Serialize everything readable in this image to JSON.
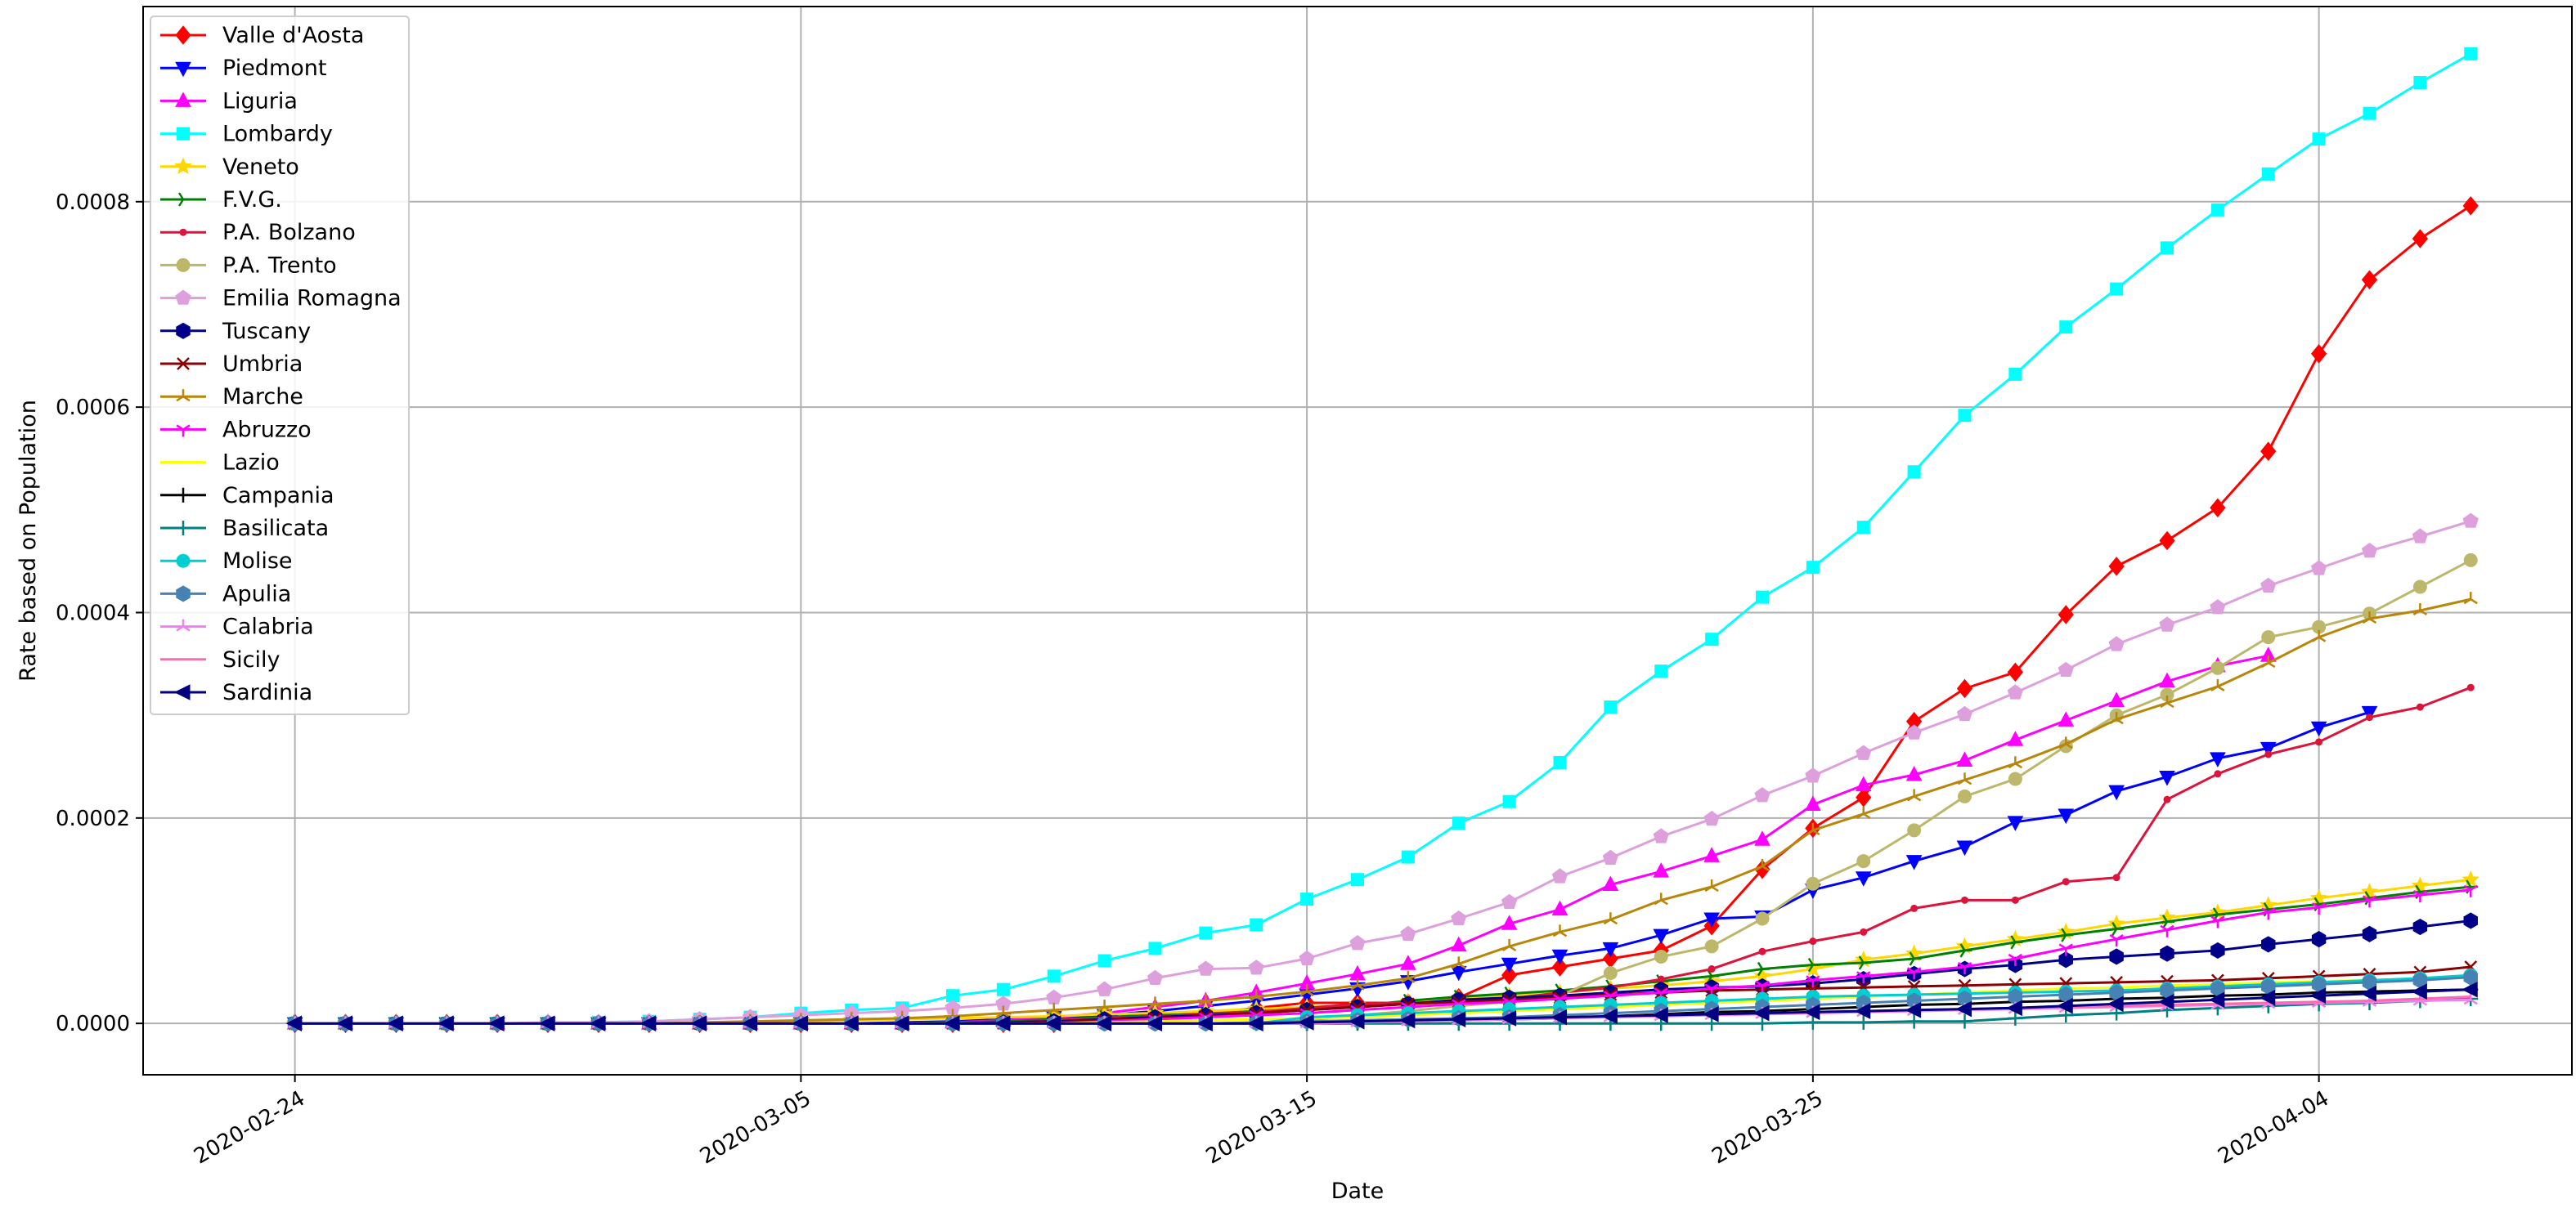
{
  "chart_data": {
    "type": "line",
    "title": "",
    "xlabel": "Date",
    "ylabel": "Rate based on Population",
    "x_tick_labels": [
      "2020-02-24",
      "2020-03-05",
      "2020-03-15",
      "2020-03-25",
      "2020-04-04"
    ],
    "y_tick_labels": [
      "0.0000",
      "0.0002",
      "0.0004",
      "0.0006",
      "0.0008"
    ],
    "y_ticks": [
      0,
      0.0002,
      0.0004,
      0.0006,
      0.0008
    ],
    "xlim": [
      "2020-02-21",
      "2020-04-09"
    ],
    "ylim": [
      -5e-05,
      0.00099
    ],
    "grid": true,
    "legend_position": "upper-left",
    "x": [
      "2020-02-24",
      "2020-02-25",
      "2020-02-26",
      "2020-02-27",
      "2020-02-28",
      "2020-02-29",
      "2020-03-01",
      "2020-03-02",
      "2020-03-03",
      "2020-03-04",
      "2020-03-05",
      "2020-03-06",
      "2020-03-07",
      "2020-03-08",
      "2020-03-09",
      "2020-03-10",
      "2020-03-11",
      "2020-03-12",
      "2020-03-13",
      "2020-03-14",
      "2020-03-15",
      "2020-03-16",
      "2020-03-17",
      "2020-03-18",
      "2020-03-19",
      "2020-03-20",
      "2020-03-21",
      "2020-03-22",
      "2020-03-23",
      "2020-03-24",
      "2020-03-25",
      "2020-03-26",
      "2020-03-27",
      "2020-03-28",
      "2020-03-29",
      "2020-03-30",
      "2020-03-31",
      "2020-04-01",
      "2020-04-02",
      "2020-04-03",
      "2020-04-04",
      "2020-04-05",
      "2020-04-06",
      "2020-04-07"
    ],
    "series": [
      {
        "name": "Valle d'Aosta",
        "color": "#ff0000",
        "marker": "diamond",
        "values": [
          0,
          0,
          0,
          0,
          0,
          0,
          0,
          0,
          0,
          0,
          0,
          0,
          0,
          0,
          0,
          0,
          5e-06,
          1e-05,
          1e-05,
          1.5e-05,
          2e-05,
          2e-05,
          2e-05,
          2.5e-05,
          4.7e-05,
          5.5e-05,
          6.3e-05,
          7.1e-05,
          9.5e-05,
          0.00015,
          0.00019,
          0.00022,
          0.000294,
          0.000326,
          0.000342,
          0.000398,
          0.000445,
          0.00047,
          0.000502,
          0.000557,
          0.000652,
          0.000724,
          0.000764,
          0.000796
        ]
      },
      {
        "name": "Piedmont",
        "color": "#0000ff",
        "marker": "triangle-down",
        "values": [
          0,
          0,
          0,
          0,
          0,
          0,
          0,
          0,
          0,
          0,
          0,
          0,
          1e-06,
          2e-06,
          4e-06,
          6e-06,
          8e-06,
          1.2e-05,
          1.7e-05,
          2.2e-05,
          2.8e-05,
          3.4e-05,
          4.1e-05,
          5e-05,
          5.8e-05,
          6.6e-05,
          7.3e-05,
          8.6e-05,
          0.000102,
          0.000104,
          0.00013,
          0.000142,
          0.000158,
          0.000172,
          0.000196,
          0.000203,
          0.000226,
          0.00024,
          0.000258,
          0.000268,
          0.000288,
          0.000303,
          null,
          null
        ]
      },
      {
        "name": "Liguria",
        "color": "#ff00ff",
        "marker": "triangle-up",
        "values": [
          0,
          0,
          0,
          0,
          0,
          0,
          0,
          0,
          0,
          0,
          0,
          0,
          0,
          1e-06,
          3e-06,
          6e-06,
          1e-05,
          1.6e-05,
          2.2e-05,
          3e-05,
          3.9e-05,
          4.8e-05,
          5.8e-05,
          7.6e-05,
          9.7e-05,
          0.000111,
          0.000135,
          0.000148,
          0.000163,
          0.000179,
          0.000213,
          0.000232,
          0.000242,
          0.000256,
          0.000276,
          0.000295,
          0.000314,
          0.000333,
          0.000348,
          0.000358,
          null,
          null,
          null,
          null
        ]
      },
      {
        "name": "Lombardy",
        "color": "#00ffff",
        "marker": "square",
        "values": [
          0,
          0,
          0,
          0,
          0,
          0,
          1e-06,
          2e-06,
          4e-06,
          6e-06,
          1e-05,
          1.3e-05,
          1.5e-05,
          2.7e-05,
          3.3e-05,
          4.6e-05,
          6.1e-05,
          7.3e-05,
          8.8e-05,
          9.6e-05,
          0.000121,
          0.00014,
          0.000162,
          0.000195,
          0.000216,
          0.000254,
          0.000308,
          0.000343,
          0.000374,
          0.000415,
          0.000444,
          0.000483,
          0.000537,
          0.000592,
          0.000632,
          0.000678,
          0.000715,
          0.000755,
          0.000792,
          0.000827,
          0.000861,
          0.000886,
          0.000916,
          0.000944
        ]
      },
      {
        "name": "Veneto",
        "color": "#ffd700",
        "marker": "star",
        "values": [
          0,
          0,
          0,
          0,
          0,
          0,
          0,
          0,
          0,
          1e-06,
          2e-06,
          3e-06,
          4e-06,
          5e-06,
          6e-06,
          7e-06,
          9e-06,
          1e-05,
          1.2e-05,
          1.4e-05,
          1.6e-05,
          1.8e-05,
          2.1e-05,
          2.4e-05,
          2.7e-05,
          3e-05,
          3.4e-05,
          3.7e-05,
          4.1e-05,
          4.6e-05,
          5.3e-05,
          6.2e-05,
          6.8e-05,
          7.5e-05,
          8.2e-05,
          8.9e-05,
          9.7e-05,
          0.000103,
          0.000108,
          0.000115,
          0.000122,
          0.000128,
          0.000134,
          0.00014
        ]
      },
      {
        "name": "F.V.G.",
        "color": "#008000",
        "marker": "tri-right",
        "values": [
          0,
          0,
          0,
          0,
          0,
          0,
          0,
          0,
          0,
          0,
          0,
          0,
          0,
          1e-06,
          2e-06,
          4e-06,
          6e-06,
          8e-06,
          9e-06,
          1.2e-05,
          1.3e-05,
          1.7e-05,
          2.2e-05,
          2.6e-05,
          2.9e-05,
          3.2e-05,
          3.6e-05,
          4.1e-05,
          4.6e-05,
          5.3e-05,
          5.7e-05,
          5.9e-05,
          6.3e-05,
          7.1e-05,
          7.9e-05,
          8.6e-05,
          9.2e-05,
          9.9e-05,
          0.000106,
          0.000111,
          0.000116,
          0.000122,
          0.000128,
          0.000133
        ]
      },
      {
        "name": "P.A. Bolzano",
        "color": "#dc143c",
        "marker": "point",
        "values": [
          0,
          0,
          0,
          0,
          0,
          0,
          0,
          0,
          0,
          0,
          0,
          0,
          0,
          0,
          0,
          3e-06,
          5e-06,
          7e-06,
          9e-06,
          1.1e-05,
          1.5e-05,
          1.9e-05,
          2e-05,
          2.1e-05,
          2.4e-05,
          3e-05,
          3.5e-05,
          4.3e-05,
          5.3e-05,
          7e-05,
          8e-05,
          8.9e-05,
          0.000112,
          0.00012,
          0.00012,
          0.000138,
          0.000142,
          0.000218,
          0.000243,
          0.000262,
          0.000274,
          0.000298,
          0.000308,
          0.000327
        ]
      },
      {
        "name": "P.A. Trento",
        "color": "#bdb76b",
        "marker": "circle",
        "values": [
          0,
          0,
          0,
          0,
          0,
          0,
          0,
          0,
          0,
          0,
          0,
          0,
          0,
          0,
          0,
          0,
          0,
          0,
          0,
          0,
          3e-06,
          8e-06,
          1.2e-05,
          1.7e-05,
          2.1e-05,
          2.7e-05,
          4.9e-05,
          6.5e-05,
          7.5e-05,
          0.000102,
          0.000136,
          0.000158,
          0.000188,
          0.000221,
          0.000238,
          0.00027,
          0.0003,
          0.00032,
          0.000346,
          0.000376,
          0.000386,
          0.000399,
          0.000425,
          0.000451
        ]
      },
      {
        "name": "Emilia Romagna",
        "color": "#dda0dd",
        "marker": "pentagon",
        "values": [
          0,
          0,
          0,
          0,
          0,
          1e-06,
          1e-06,
          2e-06,
          4e-06,
          6e-06,
          8e-06,
          1e-05,
          1.2e-05,
          1.5e-05,
          1.9e-05,
          2.5e-05,
          3.3e-05,
          4.4e-05,
          5.3e-05,
          5.4e-05,
          6.3e-05,
          7.8e-05,
          8.7e-05,
          0.000102,
          0.000118,
          0.000143,
          0.000161,
          0.000182,
          0.000199,
          0.000222,
          0.000241,
          0.000263,
          0.000283,
          0.000301,
          0.000322,
          0.000344,
          0.000369,
          0.000388,
          0.000405,
          0.000426,
          0.000443,
          0.00046,
          0.000474,
          0.000489
        ]
      },
      {
        "name": "Tuscany",
        "color": "#00008b",
        "marker": "hexagon",
        "values": [
          0,
          0,
          0,
          0,
          0,
          0,
          0,
          0,
          0,
          0,
          0,
          0,
          0,
          0,
          1e-06,
          2e-06,
          4e-06,
          6e-06,
          8e-06,
          1e-05,
          1.3e-05,
          1.6e-05,
          1.9e-05,
          2.3e-05,
          2.5e-05,
          2.7e-05,
          3e-05,
          3.3e-05,
          3.5e-05,
          3.6e-05,
          3.9e-05,
          4.3e-05,
          4.8e-05,
          5.3e-05,
          5.7e-05,
          6.2e-05,
          6.5e-05,
          6.8e-05,
          7.1e-05,
          7.7e-05,
          8.2e-05,
          8.7e-05,
          9.4e-05,
          0.0001
        ]
      },
      {
        "name": "Umbria",
        "color": "#8b0000",
        "marker": "x",
        "values": [
          0,
          0,
          0,
          0,
          0,
          0,
          0,
          0,
          0,
          0,
          0,
          0,
          0,
          0,
          0,
          1e-06,
          3e-06,
          5e-06,
          7e-06,
          1e-05,
          1.3e-05,
          1.6e-05,
          1.9e-05,
          2.1e-05,
          2.3e-05,
          2.5e-05,
          2.8e-05,
          3e-05,
          3.2e-05,
          3.3e-05,
          3.4e-05,
          3.5e-05,
          3.6e-05,
          3.7e-05,
          3.8e-05,
          3.9e-05,
          4e-05,
          4.1e-05,
          4.2e-05,
          4.4e-05,
          4.6e-05,
          4.8e-05,
          5e-05,
          5.5e-05
        ]
      },
      {
        "name": "Marche",
        "color": "#b8860b",
        "marker": "tri-up",
        "values": [
          0,
          0,
          0,
          0,
          0,
          0,
          0,
          0,
          1e-06,
          2e-06,
          3e-06,
          4e-06,
          5e-06,
          7e-06,
          1e-05,
          1.3e-05,
          1.6e-05,
          1.9e-05,
          2.2e-05,
          2.6e-05,
          3.1e-05,
          3.7e-05,
          4.4e-05,
          5.8e-05,
          7.5e-05,
          8.9e-05,
          0.000101,
          0.00012,
          0.000133,
          0.000153,
          0.000188,
          0.000204,
          0.000221,
          0.000237,
          0.000253,
          0.000272,
          0.000296,
          0.000312,
          0.000328,
          0.000351,
          0.000376,
          0.000394,
          0.000402,
          0.000413
        ]
      },
      {
        "name": "Abruzzo",
        "color": "#ff00ff",
        "marker": "tri-down",
        "values": [
          0,
          0,
          0,
          0,
          0,
          0,
          0,
          0,
          0,
          0,
          0,
          0,
          0,
          0,
          0,
          0,
          2e-06,
          4e-06,
          6e-06,
          8e-06,
          1e-05,
          1.3e-05,
          1.6e-05,
          1.9e-05,
          2.1e-05,
          2.4e-05,
          2.7e-05,
          3e-05,
          3.4e-05,
          3.7e-05,
          4.2e-05,
          4.6e-05,
          5e-05,
          5.5e-05,
          6.3e-05,
          7.3e-05,
          8.2e-05,
          9.1e-05,
          0.0001,
          0.000108,
          0.000113,
          0.00012,
          0.000125,
          0.00013
        ]
      },
      {
        "name": "Lazio",
        "color": "#ffff00",
        "marker": "none",
        "values": [
          0,
          0,
          0,
          0,
          0,
          0,
          0,
          0,
          0,
          0,
          0,
          0,
          0,
          0,
          0,
          0,
          1e-06,
          2e-06,
          3e-06,
          4e-06,
          5e-06,
          6e-06,
          8e-06,
          1e-05,
          1.2e-05,
          1.4e-05,
          1.6e-05,
          1.8e-05,
          2e-05,
          2.2e-05,
          2.4e-05,
          2.6e-05,
          2.8e-05,
          3e-05,
          3.2e-05,
          3.4e-05,
          3.5e-05,
          3.7e-05,
          3.8e-05,
          4e-05,
          4.1e-05,
          4.2e-05,
          4.3e-05,
          4.5e-05
        ]
      },
      {
        "name": "Campania",
        "color": "#000000",
        "marker": "plus",
        "values": [
          0,
          0,
          0,
          0,
          0,
          0,
          0,
          0,
          0,
          0,
          0,
          0,
          0,
          0,
          0,
          0,
          0,
          0,
          0,
          0,
          0,
          1e-06,
          2e-06,
          3e-06,
          4e-06,
          5e-06,
          7e-06,
          9e-06,
          1.1e-05,
          1.2e-05,
          1.4e-05,
          1.6e-05,
          1.8e-05,
          1.9e-05,
          2.1e-05,
          2.2e-05,
          2.4e-05,
          2.5e-05,
          2.7e-05,
          2.8e-05,
          3e-05,
          3.1e-05,
          3.2e-05,
          3.3e-05
        ]
      },
      {
        "name": "Basilicata",
        "color": "#008080",
        "marker": "plus",
        "values": [
          0,
          0,
          0,
          0,
          0,
          0,
          0,
          0,
          0,
          0,
          0,
          0,
          0,
          0,
          0,
          0,
          0,
          0,
          0,
          0,
          0,
          0,
          0,
          0,
          0,
          0,
          0,
          0,
          0,
          0,
          1e-06,
          1e-06,
          2e-06,
          2e-06,
          5e-06,
          8e-06,
          1e-05,
          1.3e-05,
          1.5e-05,
          1.7e-05,
          1.9e-05,
          2e-05,
          2.2e-05,
          2.4e-05
        ]
      },
      {
        "name": "Molise",
        "color": "#00ced1",
        "marker": "circle",
        "values": [
          0,
          0,
          0,
          0,
          0,
          0,
          0,
          0,
          0,
          0,
          0,
          0,
          0,
          0,
          0,
          0,
          0,
          0,
          0,
          0,
          6e-06,
          8e-06,
          1e-05,
          1.2e-05,
          1.4e-05,
          1.6e-05,
          1.8e-05,
          2e-05,
          2.2e-05,
          2.4e-05,
          2.6e-05,
          2.7e-05,
          2.8e-05,
          2.9e-05,
          3e-05,
          3.1e-05,
          3.2e-05,
          3.4e-05,
          3.6e-05,
          3.8e-05,
          4e-05,
          4.2e-05,
          4.4e-05,
          4.7e-05
        ]
      },
      {
        "name": "Apulia",
        "color": "#4682b4",
        "marker": "hexagon",
        "values": [
          0,
          0,
          0,
          0,
          0,
          0,
          0,
          0,
          0,
          0,
          0,
          0,
          0,
          0,
          0,
          0,
          0,
          0,
          0,
          1e-06,
          2e-06,
          3e-06,
          4e-06,
          5e-06,
          6e-06,
          8e-06,
          1e-05,
          1.2e-05,
          1.4e-05,
          1.6e-05,
          1.8e-05,
          2e-05,
          2.2e-05,
          2.4e-05,
          2.6e-05,
          2.8e-05,
          3e-05,
          3.2e-05,
          3.4e-05,
          3.6e-05,
          3.8e-05,
          4e-05,
          4.2e-05,
          4.5e-05
        ]
      },
      {
        "name": "Calabria",
        "color": "#ee82ee",
        "marker": "tri-up",
        "values": [
          0,
          0,
          0,
          0,
          0,
          0,
          0,
          0,
          0,
          0,
          0,
          0,
          0,
          0,
          0,
          0,
          0,
          0,
          0,
          0,
          0,
          1e-06,
          2e-06,
          3e-06,
          4e-06,
          5e-06,
          6e-06,
          7e-06,
          8e-06,
          9e-06,
          1e-05,
          1.1e-05,
          1.2e-05,
          1.3e-05,
          1.4e-05,
          1.5e-05,
          1.6e-05,
          1.7e-05,
          1.8e-05,
          1.9e-05,
          2e-05,
          2.1e-05,
          2.2e-05,
          2.3e-05
        ]
      },
      {
        "name": "Sicily",
        "color": "#ff69b4",
        "marker": "none",
        "values": [
          0,
          0,
          0,
          0,
          0,
          0,
          0,
          0,
          0,
          0,
          0,
          0,
          0,
          0,
          0,
          0,
          0,
          0,
          0,
          0,
          1e-06,
          2e-06,
          3e-06,
          4e-06,
          5e-06,
          6e-06,
          7e-06,
          8e-06,
          9e-06,
          1e-05,
          1.1e-05,
          1.2e-05,
          1.3e-05,
          1.4e-05,
          1.5e-05,
          1.6e-05,
          1.7e-05,
          1.8e-05,
          1.9e-05,
          2e-05,
          2.1e-05,
          2.2e-05,
          2.4e-05,
          2.6e-05
        ]
      },
      {
        "name": "Sardinia",
        "color": "#000080",
        "marker": "triangle-left",
        "values": [
          0,
          0,
          0,
          0,
          0,
          0,
          0,
          0,
          0,
          0,
          0,
          0,
          0,
          0,
          0,
          0,
          0,
          0,
          0,
          0,
          1e-06,
          2e-06,
          3e-06,
          4e-06,
          5e-06,
          6e-06,
          7e-06,
          8e-06,
          9e-06,
          1e-05,
          1.1e-05,
          1.2e-05,
          1.3e-05,
          1.4e-05,
          1.5e-05,
          1.7e-05,
          1.9e-05,
          2.1e-05,
          2.3e-05,
          2.5e-05,
          2.7e-05,
          2.9e-05,
          3.1e-05,
          3.3e-05
        ]
      }
    ]
  }
}
